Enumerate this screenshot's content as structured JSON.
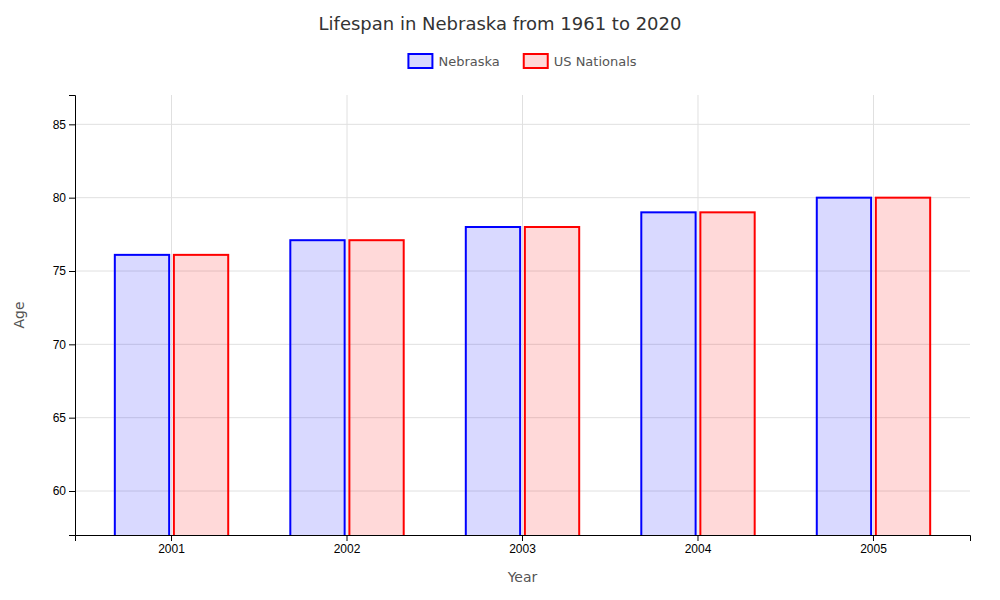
{
  "chart_data": {
    "type": "bar",
    "title": "Lifespan in Nebraska from 1961 to 2020",
    "x_label": "Year",
    "y_label": "Age",
    "categories": [
      "2001",
      "2002",
      "2003",
      "2004",
      "2005"
    ],
    "series": [
      {
        "name": "Nebraska",
        "color": "#0000ff",
        "values": [
          76.1,
          77.1,
          78.0,
          79.0,
          80.0
        ]
      },
      {
        "name": "US Nationals",
        "color": "#ff0000",
        "values": [
          76.1,
          77.1,
          78.0,
          79.0,
          80.0
        ]
      }
    ],
    "ylim": [
      57,
      87
    ],
    "yticks": [
      60,
      65,
      70,
      75,
      80,
      85
    ],
    "grid": true,
    "legend": "top"
  }
}
